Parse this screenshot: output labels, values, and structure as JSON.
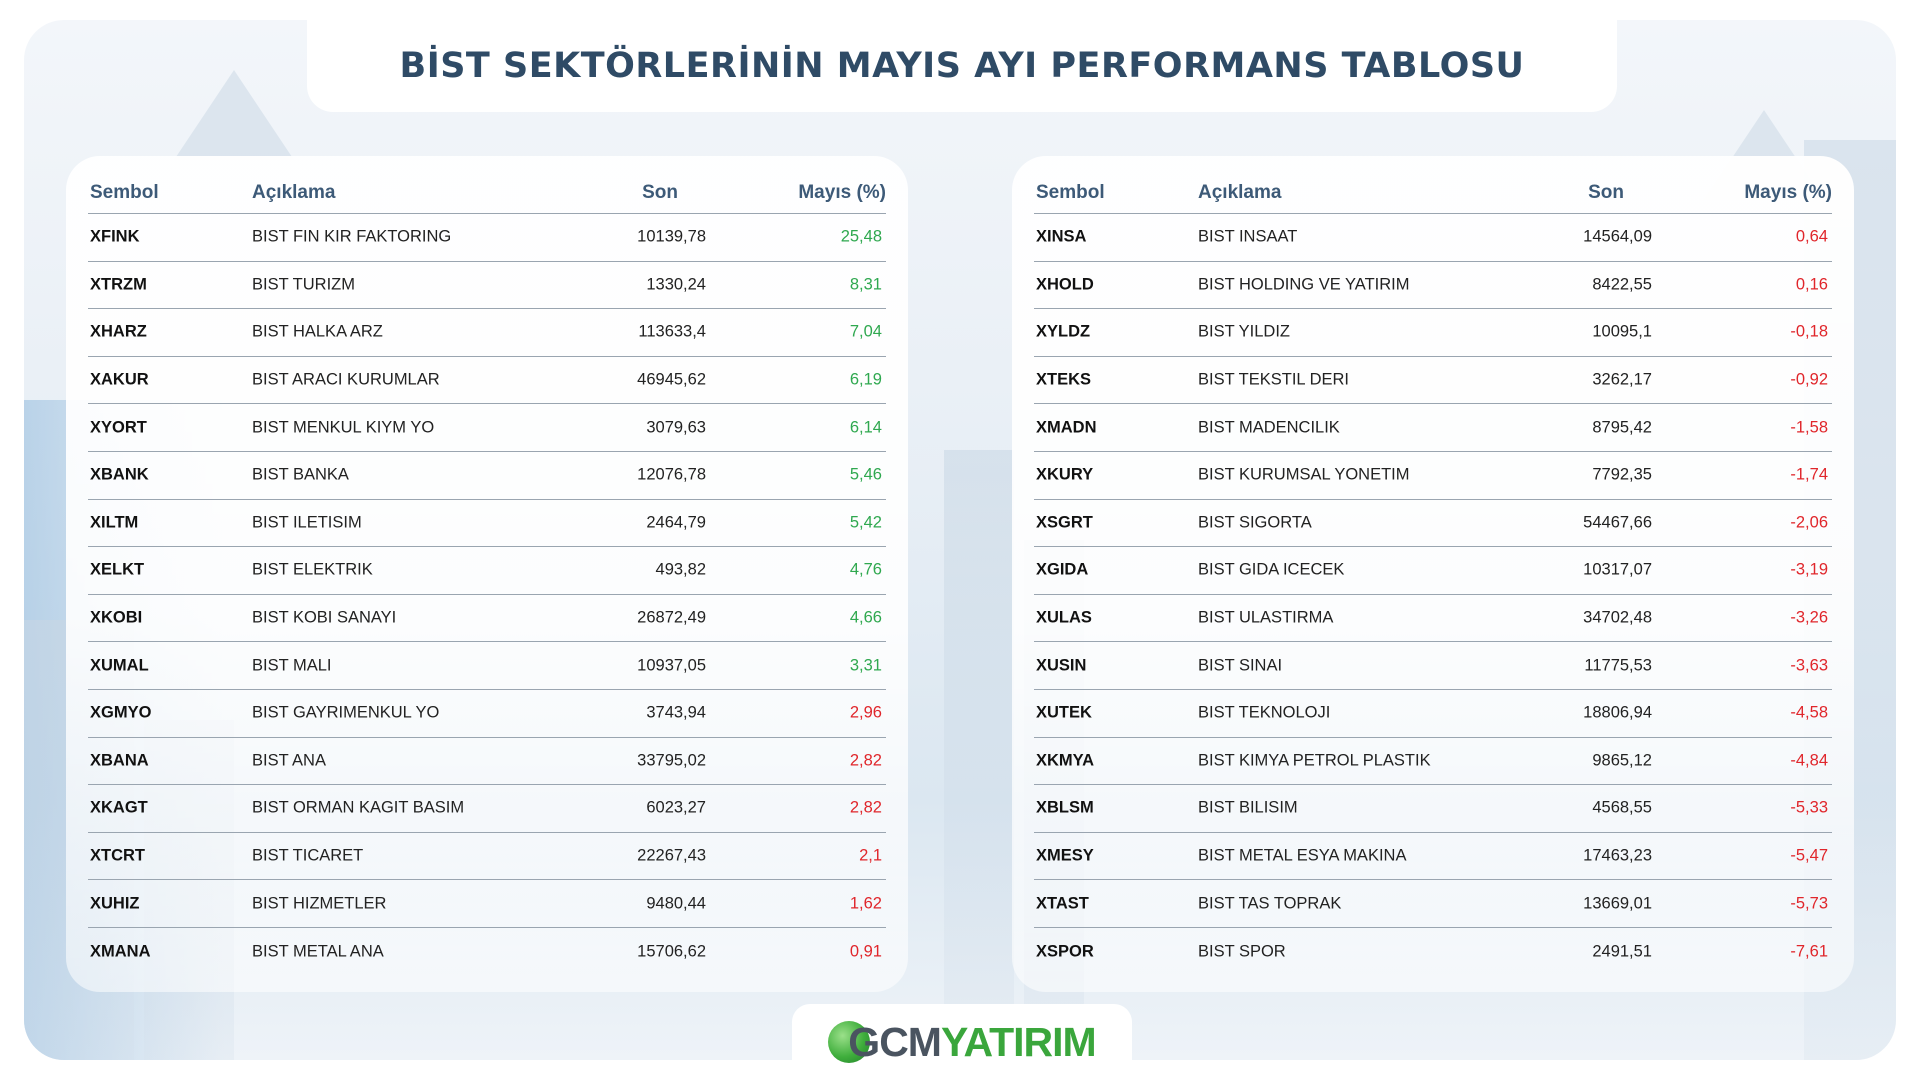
{
  "title": "BİST SEKTÖRLERİNİN MAYIS AYI PERFORMANS TABLOSU",
  "columns": {
    "symbol": "Sembol",
    "description": "Açıklama",
    "last": "Son",
    "change": "Mayıs (%)"
  },
  "colors": {
    "positive": "#2fa84f",
    "negative": "#e0262b",
    "header": "#3d5a78",
    "title": "#2f4b66"
  },
  "left_table": [
    {
      "symbol": "XFINK",
      "description": "BIST FIN KIR FAKTORING",
      "last": "10139,78",
      "change": "25,48",
      "trend": "pos"
    },
    {
      "symbol": "XTRZM",
      "description": "BIST TURIZM",
      "last": "1330,24",
      "change": "8,31",
      "trend": "pos"
    },
    {
      "symbol": "XHARZ",
      "description": "BIST HALKA ARZ",
      "last": "113633,4",
      "change": "7,04",
      "trend": "pos"
    },
    {
      "symbol": "XAKUR",
      "description": "BIST ARACI KURUMLAR",
      "last": "46945,62",
      "change": "6,19",
      "trend": "pos"
    },
    {
      "symbol": "XYORT",
      "description": "BIST MENKUL KIYM YO",
      "last": "3079,63",
      "change": "6,14",
      "trend": "pos"
    },
    {
      "symbol": "XBANK",
      "description": "BIST BANKA",
      "last": "12076,78",
      "change": "5,46",
      "trend": "pos"
    },
    {
      "symbol": "XILTM",
      "description": "BIST ILETISIM",
      "last": "2464,79",
      "change": "5,42",
      "trend": "pos"
    },
    {
      "symbol": "XELKT",
      "description": "BIST ELEKTRIK",
      "last": "493,82",
      "change": "4,76",
      "trend": "pos"
    },
    {
      "symbol": "XKOBI",
      "description": "BIST KOBI SANAYI",
      "last": "26872,49",
      "change": "4,66",
      "trend": "pos"
    },
    {
      "symbol": "XUMAL",
      "description": "BIST MALI",
      "last": "10937,05",
      "change": "3,31",
      "trend": "pos"
    },
    {
      "symbol": "XGMYO",
      "description": "BIST GAYRIMENKUL YO",
      "last": "3743,94",
      "change": "2,96",
      "trend": "neg"
    },
    {
      "symbol": "XBANA",
      "description": "BIST ANA",
      "last": "33795,02",
      "change": "2,82",
      "trend": "neg"
    },
    {
      "symbol": "XKAGT",
      "description": "BIST ORMAN KAGIT BASIM",
      "last": "6023,27",
      "change": "2,82",
      "trend": "neg"
    },
    {
      "symbol": "XTCRT",
      "description": "BIST TICARET",
      "last": "22267,43",
      "change": "2,1",
      "trend": "neg"
    },
    {
      "symbol": "XUHIZ",
      "description": "BIST HIZMETLER",
      "last": "9480,44",
      "change": "1,62",
      "trend": "neg"
    },
    {
      "symbol": "XMANA",
      "description": "BIST METAL ANA",
      "last": "15706,62",
      "change": "0,91",
      "trend": "neg"
    }
  ],
  "right_table": [
    {
      "symbol": "XINSA",
      "description": "BIST INSAAT",
      "last": "14564,09",
      "change": "0,64",
      "trend": "neg"
    },
    {
      "symbol": "XHOLD",
      "description": "BIST HOLDING VE YATIRIM",
      "last": "8422,55",
      "change": "0,16",
      "trend": "neg"
    },
    {
      "symbol": "XYLDZ",
      "description": "BIST YILDIZ",
      "last": "10095,1",
      "change": "-0,18",
      "trend": "neg"
    },
    {
      "symbol": "XTEKS",
      "description": "BIST TEKSTIL DERI",
      "last": "3262,17",
      "change": "-0,92",
      "trend": "neg"
    },
    {
      "symbol": "XMADN",
      "description": "BIST MADENCILIK",
      "last": "8795,42",
      "change": "-1,58",
      "trend": "neg"
    },
    {
      "symbol": "XKURY",
      "description": "BIST KURUMSAL YONETIM",
      "last": "7792,35",
      "change": "-1,74",
      "trend": "neg"
    },
    {
      "symbol": "XSGRT",
      "description": "BIST SIGORTA",
      "last": "54467,66",
      "change": "-2,06",
      "trend": "neg"
    },
    {
      "symbol": "XGIDA",
      "description": "BIST GIDA ICECEK",
      "last": "10317,07",
      "change": "-3,19",
      "trend": "neg"
    },
    {
      "symbol": "XULAS",
      "description": "BIST ULASTIRMA",
      "last": "34702,48",
      "change": "-3,26",
      "trend": "neg"
    },
    {
      "symbol": "XUSIN",
      "description": "BIST SINAI",
      "last": "11775,53",
      "change": "-3,63",
      "trend": "neg"
    },
    {
      "symbol": "XUTEK",
      "description": "BIST TEKNOLOJI",
      "last": "18806,94",
      "change": "-4,58",
      "trend": "neg"
    },
    {
      "symbol": "XKMYA",
      "description": "BIST KIMYA PETROL PLASTIK",
      "last": "9865,12",
      "change": "-4,84",
      "trend": "neg"
    },
    {
      "symbol": "XBLSM",
      "description": "BIST BILISIM",
      "last": "4568,55",
      "change": "-5,33",
      "trend": "neg"
    },
    {
      "symbol": "XMESY",
      "description": "BIST METAL ESYA MAKINA",
      "last": "17463,23",
      "change": "-5,47",
      "trend": "neg"
    },
    {
      "symbol": "XTAST",
      "description": "BIST TAS TOPRAK",
      "last": "13669,01",
      "change": "-5,73",
      "trend": "neg"
    },
    {
      "symbol": "XSPOR",
      "description": "BIST SPOR",
      "last": "2491,51",
      "change": "-7,61",
      "trend": "neg"
    }
  ],
  "logo": {
    "part1": "GCM",
    "part2": "YATIRIM",
    "icon": "globe-icon"
  }
}
